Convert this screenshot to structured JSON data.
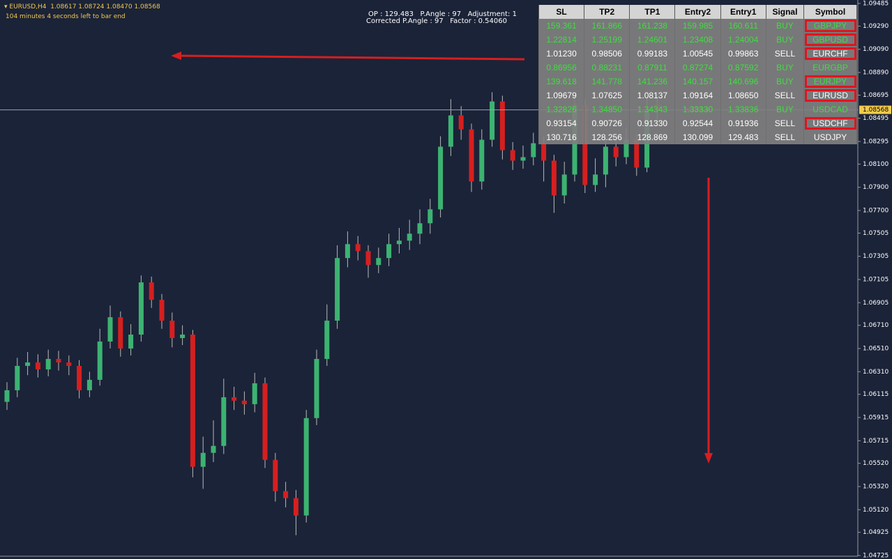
{
  "header": {
    "symbol_line": "EURUSD,H4  1.08617 1.08724 1.08470 1.08568",
    "timer": "104 minutes 4 seconds left to bar end"
  },
  "panel": {
    "line1": "OP : 129.483   P.Angle : 97   Adjustment: 1",
    "line2": "Corrected P.Angle : 97   Factor : 0.54060"
  },
  "table": {
    "columns": [
      "SL",
      "TP2",
      "TP1",
      "Entry2",
      "Entry1",
      "Signal",
      "Symbol"
    ],
    "rows": [
      {
        "cells": [
          "159.361",
          "161.866",
          "161.238",
          "159.985",
          "160.611",
          "BUY",
          "GBPJPY"
        ],
        "color": "#3ce03c",
        "boxed": true
      },
      {
        "cells": [
          "1.22814",
          "1.25199",
          "1.24601",
          "1.23408",
          "1.24004",
          "BUY",
          "GBPUSD"
        ],
        "color": "#3ce03c",
        "boxed": true
      },
      {
        "cells": [
          "1.01230",
          "0.98506",
          "0.99183",
          "1.00545",
          "0.99863",
          "SELL",
          "EURCHF"
        ],
        "color": "#ffffff",
        "boxed": true
      },
      {
        "cells": [
          "0.86956",
          "0.88231",
          "0.87911",
          "0.87274",
          "0.87592",
          "BUY",
          "EURGBP"
        ],
        "color": "#3ce03c",
        "boxed": false
      },
      {
        "cells": [
          "139.618",
          "141.778",
          "141.236",
          "140.157",
          "140.696",
          "BUY",
          "EURJPY"
        ],
        "color": "#3ce03c",
        "boxed": true
      },
      {
        "cells": [
          "1.09679",
          "1.07625",
          "1.08137",
          "1.09164",
          "1.08650",
          "SELL",
          "EURUSD"
        ],
        "color": "#ffffff",
        "boxed": true
      },
      {
        "cells": [
          "1.32826",
          "1.34850",
          "1.34343",
          "1.33330",
          "1.33836",
          "BUY",
          "USDCAD"
        ],
        "color": "#3ce03c",
        "boxed": false
      },
      {
        "cells": [
          "0.93154",
          "0.90726",
          "0.91330",
          "0.92544",
          "0.91936",
          "SELL",
          "USDCHF"
        ],
        "color": "#ffffff",
        "boxed": true
      },
      {
        "cells": [
          "130.716",
          "128.256",
          "128.869",
          "130.099",
          "129.483",
          "SELL",
          "USDJPY"
        ],
        "color": "#ffffff",
        "boxed": false
      }
    ]
  },
  "chart_data": {
    "type": "candlestick",
    "up_color": "#3cb371",
    "down_color": "#d61f1f",
    "ylim": [
      1.04725,
      1.09485
    ],
    "yticks": [
      1.09485,
      {
        "value": 1.0929,
        "label": "1.09290"
      },
      {
        "value": 1.0909,
        "label": "1.09090"
      },
      {
        "value": 1.0889,
        "label": "1.08890"
      },
      1.08695,
      1.08495,
      1.08295,
      {
        "value": 1.081,
        "label": "1.08100"
      },
      {
        "value": 1.079,
        "label": "1.07900"
      },
      {
        "value": 1.077,
        "label": "1.07700"
      },
      1.07505,
      1.07305,
      1.07105,
      1.06905,
      {
        "value": 1.0671,
        "label": "1.06710"
      },
      {
        "value": 1.0651,
        "label": "1.06510"
      },
      {
        "value": 1.0631,
        "label": "1.06310"
      },
      1.06115,
      1.05915,
      1.05715,
      {
        "value": 1.0552,
        "label": "1.05520"
      },
      {
        "value": 1.0532,
        "label": "1.05320"
      },
      {
        "value": 1.0512,
        "label": "1.05120"
      },
      1.04925,
      1.04725
    ],
    "current_price": 1.08568,
    "annotation": "<104.4",
    "candles": [
      [
        1.0605,
        1.0622,
        1.0598,
        1.0615
      ],
      [
        1.0615,
        1.0643,
        1.0609,
        1.0636
      ],
      [
        1.0636,
        1.0648,
        1.0628,
        1.0639
      ],
      [
        1.0639,
        1.0646,
        1.0626,
        1.0633
      ],
      [
        1.0633,
        1.065,
        1.0627,
        1.0642
      ],
      [
        1.0642,
        1.0649,
        1.0632,
        1.0639
      ],
      [
        1.0639,
        1.0645,
        1.0628,
        1.0636
      ],
      [
        1.0636,
        1.0641,
        1.0608,
        1.0615
      ],
      [
        1.0615,
        1.0631,
        1.0609,
        1.0624
      ],
      [
        1.0624,
        1.0668,
        1.0619,
        1.0657
      ],
      [
        1.0657,
        1.0688,
        1.0651,
        1.0678
      ],
      [
        1.0678,
        1.0683,
        1.0644,
        1.0651
      ],
      [
        1.0651,
        1.0672,
        1.0645,
        1.0663
      ],
      [
        1.0663,
        1.0714,
        1.0657,
        1.0708
      ],
      [
        1.0708,
        1.0713,
        1.0686,
        1.0693
      ],
      [
        1.0693,
        1.0698,
        1.0668,
        1.0675
      ],
      [
        1.0675,
        1.0682,
        1.0652,
        1.066
      ],
      [
        1.066,
        1.0671,
        1.0654,
        1.0663
      ],
      [
        1.0663,
        1.0667,
        1.054,
        1.0549
      ],
      [
        1.0549,
        1.0575,
        1.053,
        1.0561
      ],
      [
        1.0561,
        1.0589,
        1.0553,
        1.0567
      ],
      [
        1.0567,
        1.0625,
        1.056,
        1.0609
      ],
      [
        1.0609,
        1.0618,
        1.0598,
        1.0606
      ],
      [
        1.0606,
        1.0614,
        1.0594,
        1.0603
      ],
      [
        1.0603,
        1.063,
        1.0596,
        1.0621
      ],
      [
        1.0621,
        1.0626,
        1.0548,
        1.0555
      ],
      [
        1.0555,
        1.0561,
        1.0519,
        1.0528
      ],
      [
        1.0528,
        1.0536,
        1.0514,
        1.0522
      ],
      [
        1.0522,
        1.0529,
        1.049,
        1.0507
      ],
      [
        1.0507,
        1.0598,
        1.0501,
        1.0591
      ],
      [
        1.0591,
        1.065,
        1.0585,
        1.0642
      ],
      [
        1.0642,
        1.0689,
        1.0636,
        1.0675
      ],
      [
        1.0675,
        1.074,
        1.0668,
        1.0729
      ],
      [
        1.0729,
        1.0752,
        1.0721,
        1.0741
      ],
      [
        1.0741,
        1.0748,
        1.0727,
        1.0735
      ],
      [
        1.0735,
        1.074,
        1.0712,
        1.0723
      ],
      [
        1.0723,
        1.0738,
        1.0716,
        1.0729
      ],
      [
        1.0729,
        1.075,
        1.0722,
        1.0741
      ],
      [
        1.0741,
        1.0755,
        1.0733,
        1.0744
      ],
      [
        1.0744,
        1.0762,
        1.0736,
        1.075
      ],
      [
        1.075,
        1.0771,
        1.0741,
        1.0759
      ],
      [
        1.0759,
        1.078,
        1.075,
        1.0771
      ],
      [
        1.0771,
        1.0834,
        1.0764,
        1.0825
      ],
      [
        1.0825,
        1.0866,
        1.0817,
        1.0852
      ],
      [
        1.0852,
        1.086,
        1.0831,
        1.084
      ],
      [
        1.084,
        1.0845,
        1.0786,
        1.0795
      ],
      [
        1.0795,
        1.084,
        1.0788,
        1.0831
      ],
      [
        1.0831,
        1.0872,
        1.0825,
        1.0864
      ],
      [
        1.0864,
        1.0869,
        1.0814,
        1.0822
      ],
      [
        1.0822,
        1.0829,
        1.0805,
        1.0813
      ],
      [
        1.0813,
        1.0826,
        1.0806,
        1.0816
      ],
      [
        1.0816,
        1.0837,
        1.0809,
        1.0828
      ],
      [
        1.0828,
        1.0834,
        1.0795,
        1.0813
      ],
      [
        1.0813,
        1.0818,
        1.0768,
        1.0783
      ],
      [
        1.0783,
        1.0812,
        1.0776,
        1.0801
      ],
      [
        1.0801,
        1.0868,
        1.0795,
        1.0861
      ],
      [
        1.0861,
        1.0866,
        1.0785,
        1.0792
      ],
      [
        1.0792,
        1.0815,
        1.0786,
        1.0801
      ],
      [
        1.0801,
        1.0834,
        1.079,
        1.0825
      ],
      [
        1.0825,
        1.0832,
        1.0808,
        1.0816
      ],
      [
        1.0816,
        1.0842,
        1.081,
        1.0831
      ],
      [
        1.0831,
        1.0836,
        1.08,
        1.0807
      ],
      [
        1.0807,
        1.0868,
        1.0803,
        1.0857
      ],
      [
        1.08617,
        1.08724,
        1.0847,
        1.08568
      ]
    ]
  }
}
